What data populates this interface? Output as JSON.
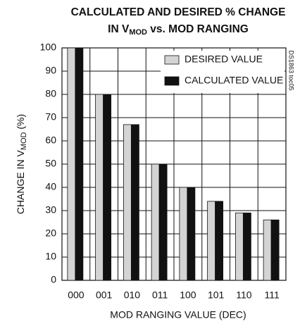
{
  "chart_data": {
    "type": "bar",
    "title": {
      "line1": "CALCULATED AND DESIRED % CHANGE",
      "line2": [
        "IN V",
        "MOD",
        " vs. MOD RANGING"
      ]
    },
    "xlabel": "MOD RANGING VALUE (DEC)",
    "ylabel": [
      "CHANGE IN V",
      "MOD",
      " (%)"
    ],
    "annotation": "DS1863 toc05",
    "categories": [
      "000",
      "001",
      "010",
      "011",
      "100",
      "101",
      "110",
      "111"
    ],
    "series": [
      {
        "name": "DESIRED VALUE",
        "color": "#d4d4d4",
        "values": [
          100,
          80,
          67,
          50,
          40,
          34,
          29,
          26
        ]
      },
      {
        "name": "CALCULATED VALUE",
        "color": "#111111",
        "values": [
          100,
          80,
          67,
          50,
          40,
          34,
          29,
          26
        ]
      }
    ],
    "ylim": [
      0,
      100
    ],
    "yticks": [
      0,
      10,
      20,
      30,
      40,
      50,
      60,
      70,
      80,
      90,
      100
    ],
    "grid": true,
    "legend": "upper right"
  }
}
